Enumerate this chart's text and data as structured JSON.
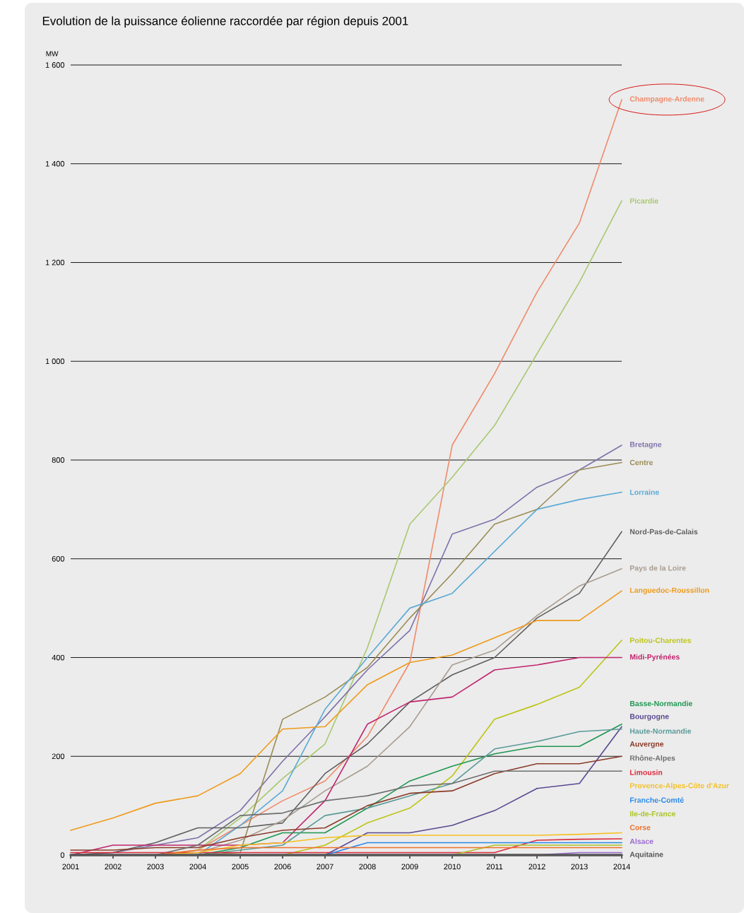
{
  "chart_data": {
    "type": "line",
    "title": "Evolution de la puissance éolienne raccordée par région depuis 2001",
    "ylabel": "MW",
    "x": [
      2001,
      2002,
      2003,
      2004,
      2005,
      2006,
      2007,
      2008,
      2009,
      2010,
      2011,
      2012,
      2013,
      2014
    ],
    "xlim": [
      2001,
      2014
    ],
    "xticks": [
      2001,
      2002,
      2003,
      2004,
      2005,
      2006,
      2007,
      2008,
      2009,
      2010,
      2011,
      2012,
      2013,
      2014
    ],
    "ylim": [
      0,
      1600
    ],
    "yticks": [
      0,
      200,
      400,
      600,
      800,
      {
        "value": 1000,
        "label": "1 000"
      },
      {
        "value": 1200,
        "label": "1 200"
      },
      {
        "value": 1400,
        "label": "1 400"
      },
      {
        "value": 1600,
        "label": "1 600"
      }
    ],
    "grid": "y",
    "series": [
      {
        "name": "Champagne-Ardenne",
        "color": "#f08a6a",
        "values": [
          null,
          null,
          0,
          10,
          60,
          110,
          150,
          240,
          390,
          830,
          975,
          1140,
          1280,
          1530
        ]
      },
      {
        "name": "Picardie",
        "color": "#a8c870",
        "values": [
          null,
          null,
          0,
          10,
          75,
          155,
          225,
          420,
          670,
          765,
          870,
          1015,
          1160,
          1325
        ]
      },
      {
        "name": "Bretagne",
        "color": "#7f72aa",
        "values": [
          0,
          5,
          20,
          35,
          90,
          190,
          280,
          375,
          455,
          650,
          680,
          745,
          780,
          830
        ]
      },
      {
        "name": "Centre",
        "color": "#9a8c55",
        "values": [
          null,
          null,
          null,
          0,
          5,
          275,
          320,
          380,
          480,
          570,
          670,
          700,
          780,
          795
        ]
      },
      {
        "name": "Lorraine",
        "color": "#5aaad6",
        "values": [
          null,
          null,
          null,
          0,
          60,
          130,
          295,
          400,
          500,
          530,
          615,
          700,
          720,
          735
        ]
      },
      {
        "name": "Nord-Pas-de-Calais",
        "color": "#5f5f5f",
        "values": [
          0,
          5,
          25,
          55,
          55,
          65,
          165,
          225,
          310,
          365,
          400,
          480,
          530,
          655
        ]
      },
      {
        "name": "Pays de la Loire",
        "color": "#a89c90",
        "values": [
          null,
          null,
          0,
          5,
          30,
          70,
          130,
          180,
          260,
          385,
          415,
          485,
          545,
          580
        ]
      },
      {
        "name": "Languedoc-Roussillon",
        "color": "#ee9a1a",
        "values": [
          50,
          75,
          105,
          120,
          165,
          255,
          260,
          345,
          390,
          405,
          440,
          475,
          475,
          535
        ]
      },
      {
        "name": "Poitou-Charentes",
        "color": "#bcc414",
        "values": [
          null,
          null,
          null,
          null,
          null,
          0,
          20,
          65,
          95,
          160,
          275,
          305,
          340,
          435
        ]
      },
      {
        "name": "Midi-Pyrénées",
        "color": "#c0246e",
        "values": [
          0,
          20,
          20,
          20,
          20,
          25,
          110,
          265,
          310,
          320,
          375,
          385,
          400,
          400
        ]
      },
      {
        "name": "Basse-Normandie",
        "color": "#1e9650",
        "values": [
          null,
          null,
          null,
          0,
          15,
          45,
          45,
          95,
          150,
          180,
          205,
          220,
          220,
          265
        ]
      },
      {
        "name": "Bourgogne",
        "color": "#5a4890",
        "values": [
          null,
          null,
          null,
          null,
          null,
          null,
          0,
          45,
          45,
          60,
          90,
          135,
          145,
          260
        ]
      },
      {
        "name": "Haute-Normandie",
        "color": "#5a9a98",
        "values": [
          null,
          null,
          null,
          0,
          10,
          20,
          80,
          95,
          120,
          145,
          215,
          230,
          250,
          255
        ]
      },
      {
        "name": "Auvergne",
        "color": "#8b3a28",
        "values": [
          10,
          10,
          15,
          15,
          35,
          50,
          55,
          100,
          125,
          130,
          165,
          185,
          185,
          200
        ]
      },
      {
        "name": "Rhône-Alpes",
        "color": "#6e6e6e",
        "values": [
          null,
          null,
          0,
          20,
          80,
          85,
          110,
          120,
          140,
          145,
          170,
          170,
          170,
          170
        ]
      },
      {
        "name": "Limousin",
        "color": "#dc2a3c",
        "values": [
          5,
          5,
          5,
          5,
          5,
          5,
          5,
          5,
          5,
          5,
          5,
          30,
          32,
          33
        ]
      },
      {
        "name": "Provence-Alpes-Côte d'Azur",
        "color": "#f6c020",
        "values": [
          null,
          null,
          0,
          5,
          20,
          25,
          35,
          40,
          40,
          40,
          40,
          40,
          42,
          45
        ]
      },
      {
        "name": "Franche-Comté",
        "color": "#2a88e8",
        "values": [
          null,
          null,
          null,
          null,
          null,
          null,
          0,
          25,
          25,
          25,
          25,
          25,
          25,
          25
        ]
      },
      {
        "name": "Ile-de-France",
        "color": "#a8c424",
        "values": [
          null,
          null,
          null,
          null,
          null,
          null,
          null,
          null,
          null,
          0,
          20,
          20,
          20,
          20
        ]
      },
      {
        "name": "Corse",
        "color": "#f0702a",
        "values": [
          null,
          null,
          0,
          10,
          15,
          15,
          15,
          15,
          15,
          15,
          15,
          15,
          15,
          15
        ]
      },
      {
        "name": "Alsace",
        "color": "#9a6ad0",
        "values": [
          null,
          null,
          null,
          null,
          null,
          null,
          null,
          null,
          null,
          null,
          null,
          0,
          5,
          5
        ]
      },
      {
        "name": "Aquitaine",
        "color": "#555555",
        "values": [
          0,
          0,
          0,
          0,
          0,
          0,
          0,
          0,
          0,
          0,
          0,
          0,
          0,
          0
        ]
      }
    ]
  }
}
